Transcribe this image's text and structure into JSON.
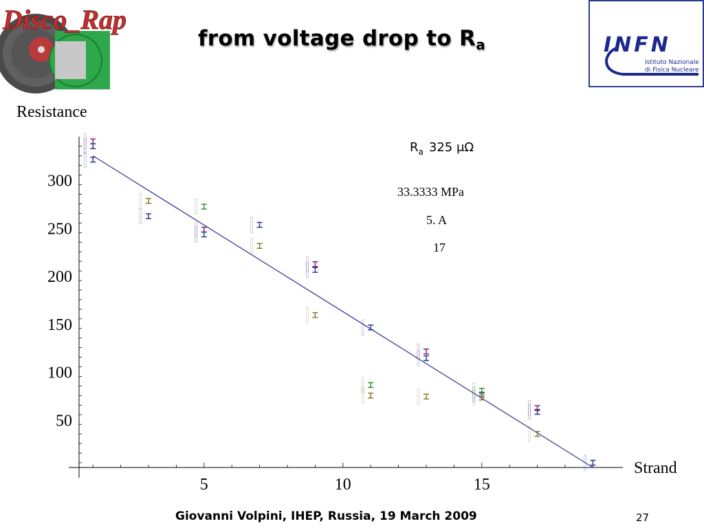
{
  "slide": {
    "title": "from voltage drop to R",
    "title_sub": "a",
    "footer": "Giovanni Volpini, IHEP, Russia, 19 March 2009",
    "page_number": "27",
    "logo_left_text": "Disco_Rap",
    "logo_right_text": "INFN",
    "logo_right_sub1": "Istituto Nazionale",
    "logo_right_sub2": "di Fisica Nucleare"
  },
  "chart_data": {
    "type": "scatter",
    "ylabel": "Resistance",
    "xlabel": "Strand",
    "xlim": [
      0.2,
      19.3
    ],
    "ylim": [
      -5,
      345
    ],
    "x_ticks": [
      5,
      10,
      15
    ],
    "y_ticks": [
      50,
      100,
      150,
      200,
      250,
      300
    ],
    "colors": {
      "line": "#3a3f9a",
      "axis": "#000000"
    },
    "fit_line": {
      "x": [
        1,
        19
      ],
      "y": [
        325,
        0
      ]
    },
    "annotations": {
      "ra_symbol": "R",
      "ra_sub": "a",
      "ra_value": "325 μΩ",
      "pressure": "33.3333 MPa",
      "current": "5. A",
      "count": "17"
    },
    "series": [
      {
        "color": "#8a2070",
        "points": [
          [
            1.0,
            340
          ],
          [
            5.0,
            248
          ],
          [
            9.0,
            212
          ],
          [
            13.0,
            121
          ],
          [
            17.0,
            62
          ]
        ]
      },
      {
        "color": "#2b3b8c",
        "points": [
          [
            1.0,
            335
          ],
          [
            1.0,
            321
          ],
          [
            3.0,
            262
          ],
          [
            5.0,
            243
          ],
          [
            7.0,
            253
          ],
          [
            9.0,
            206
          ],
          [
            11.0,
            146
          ],
          [
            13.0,
            114
          ],
          [
            15.0,
            76
          ],
          [
            17.0,
            58
          ],
          [
            19.0,
            5
          ]
        ]
      },
      {
        "color": "#8a7a2a",
        "points": [
          [
            3.0,
            278
          ],
          [
            7.0,
            231
          ],
          [
            9.0,
            159
          ],
          [
            11.0,
            75
          ],
          [
            13.0,
            74
          ],
          [
            15.0,
            73
          ],
          [
            17.0,
            35
          ]
        ]
      },
      {
        "color": "#3a8a3a",
        "points": [
          [
            5.0,
            272
          ],
          [
            11.0,
            86
          ],
          [
            15.0,
            80
          ]
        ]
      }
    ]
  }
}
